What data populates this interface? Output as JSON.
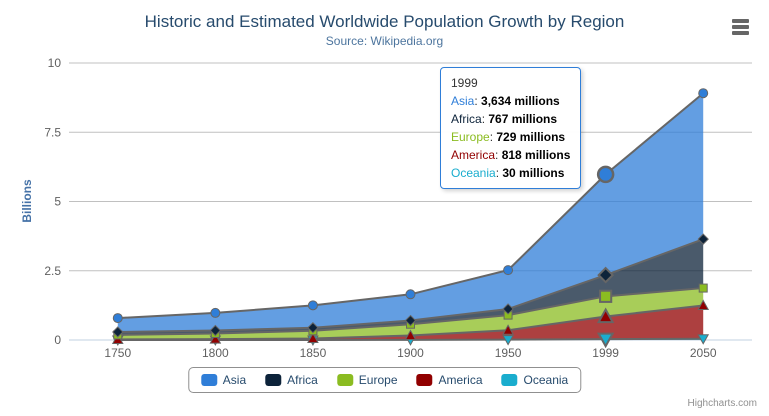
{
  "chart": {
    "title": "Historic and Estimated Worldwide Population Growth by Region",
    "subtitle": "Source: Wikipedia.org",
    "yaxis_title": "Billions",
    "credits": "Highcharts.com",
    "menu_icon": "hamburger-menu"
  },
  "chart_data": {
    "type": "area",
    "stacking": "normal",
    "title": "Historic and Estimated Worldwide Population Growth by Region",
    "subtitle": "Source: Wikipedia.org",
    "xlabel": "",
    "ylabel": "Billions",
    "unit": "millions",
    "categories": [
      "1750",
      "1800",
      "1850",
      "1900",
      "1950",
      "1999",
      "2050"
    ],
    "ylim": [
      0,
      10
    ],
    "yticks": [
      0,
      2.5,
      5,
      7.5,
      10
    ],
    "ytick_labels": [
      "0",
      "2.5",
      "5",
      "7.5",
      "10"
    ],
    "grid": true,
    "legend_position": "bottom-center",
    "line_color": "#666666",
    "fill_opacity": 0.75,
    "gridline_color": "#C0C0C0",
    "axis_line_color": "#C0D0E0",
    "stack_order_bottom_to_top": [
      "Oceania",
      "America",
      "Europe",
      "Africa",
      "Asia"
    ],
    "series": [
      {
        "name": "Asia",
        "color": "#2f7ed8",
        "marker": "circle",
        "values": [
          502,
          635,
          809,
          947,
          1402,
          3634,
          5268
        ]
      },
      {
        "name": "Africa",
        "color": "#0d233a",
        "marker": "diamond",
        "values": [
          106,
          107,
          111,
          133,
          221,
          767,
          1766
        ]
      },
      {
        "name": "Europe",
        "color": "#8bbc21",
        "marker": "square",
        "values": [
          163,
          203,
          276,
          408,
          547,
          729,
          628
        ]
      },
      {
        "name": "America",
        "color": "#910000",
        "marker": "triangle",
        "values": [
          18,
          31,
          54,
          156,
          339,
          818,
          1201
        ]
      },
      {
        "name": "Oceania",
        "color": "#1aadce",
        "marker": "triangle-down",
        "values": [
          2,
          2,
          2,
          6,
          13,
          30,
          46
        ]
      }
    ],
    "hover": {
      "category_index": 5,
      "category": "1999"
    }
  },
  "tooltip": {
    "title": "1999",
    "border_color": "#2f7ed8",
    "rows": [
      {
        "name": "Asia",
        "color": "#2f7ed8",
        "value": "3,634 millions"
      },
      {
        "name": "Africa",
        "color": "#0d233a",
        "value": "767 millions"
      },
      {
        "name": "Europe",
        "color": "#8bbc21",
        "value": "729 millions"
      },
      {
        "name": "America",
        "color": "#910000",
        "value": "818 millions"
      },
      {
        "name": "Oceania",
        "color": "#1aadce",
        "value": "30 millions"
      }
    ]
  }
}
